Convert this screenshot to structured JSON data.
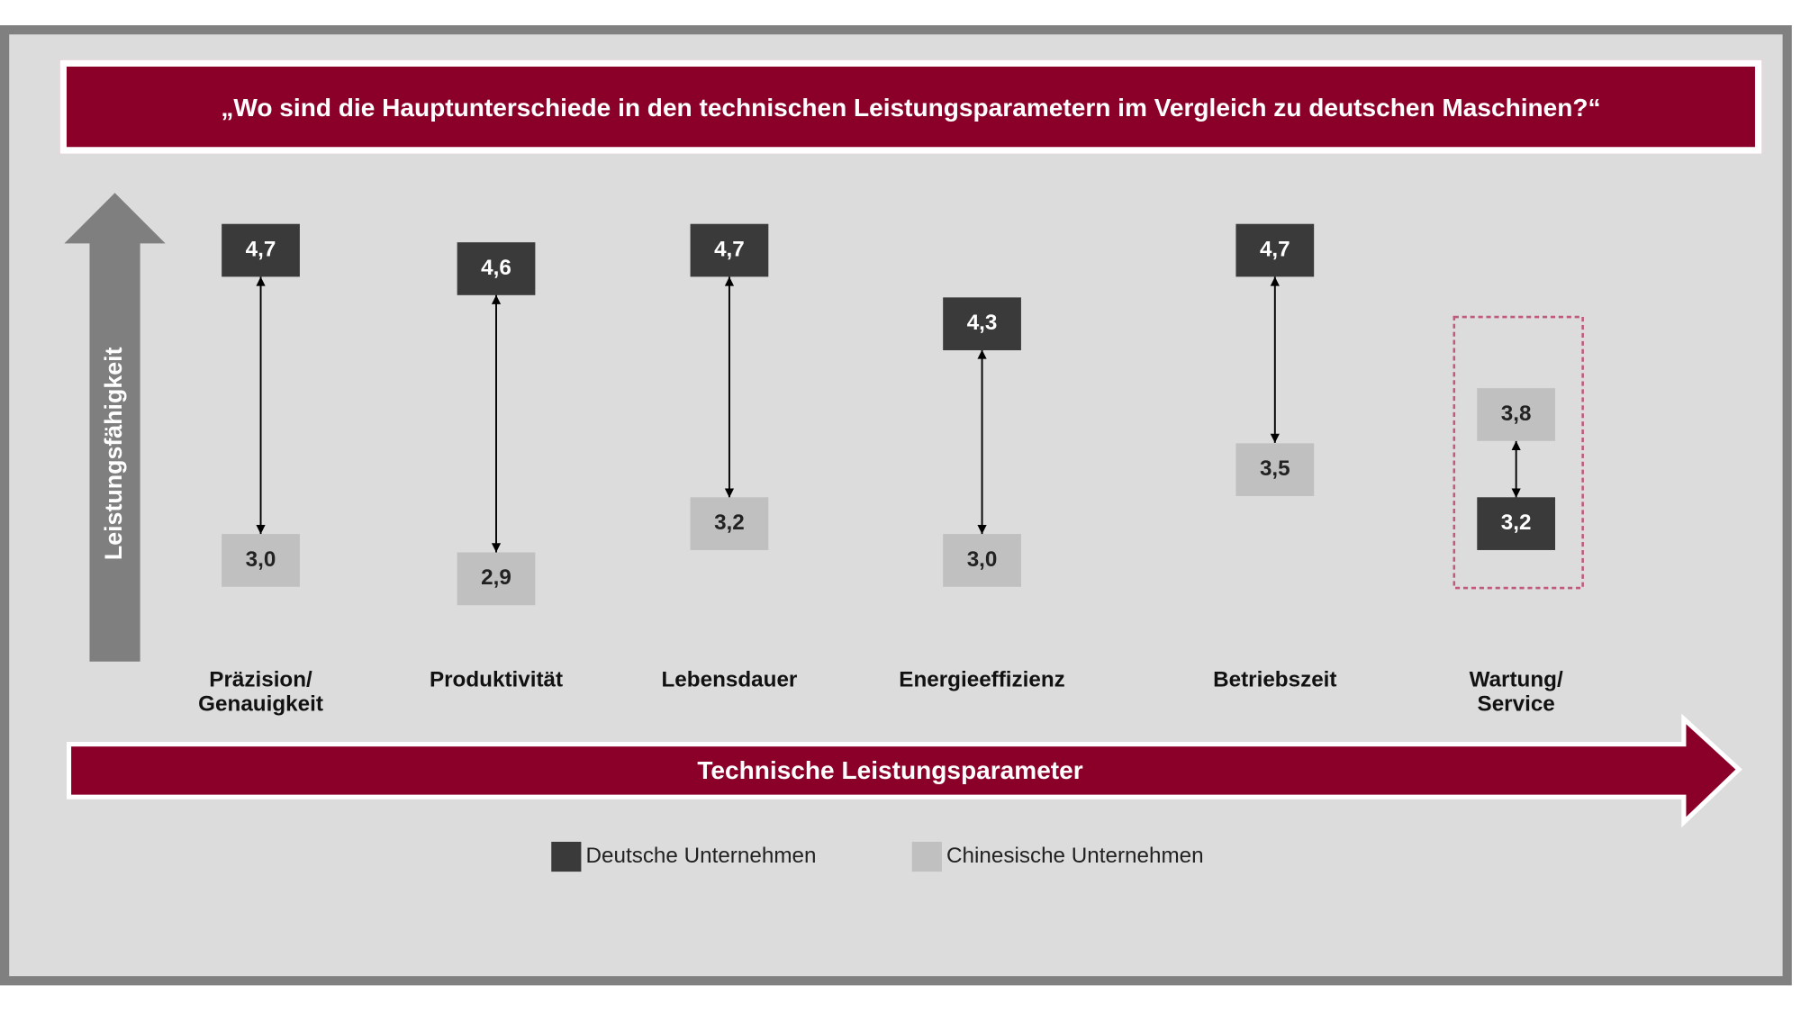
{
  "chart_data": {
    "type": "dumbbell",
    "title": "„Wo sind die Hauptunterschiede in den technischen Leistungsparametern im Vergleich zu deutschen Maschinen?“",
    "y_label": "Leistungsfähigkeit",
    "x_label": "Technische Leistungsparameter",
    "categories": [
      "Präzision/\nGenauigkeit",
      "Produktivität",
      "Lebensdauer",
      "Energieeffizienz",
      "Betriebszeit",
      "Wartung/\nService"
    ],
    "series": [
      {
        "name": "Deutsche Unternehmen",
        "color": "#3a3a3a",
        "values": [
          4.7,
          4.6,
          4.7,
          4.3,
          4.7,
          3.2
        ],
        "value_labels": [
          "4,7",
          "4,6",
          "4,7",
          "4,3",
          "4,7",
          "3,2"
        ]
      },
      {
        "name": "Chinesische Unternehmen",
        "color": "#c0c0c0",
        "values": [
          3.0,
          2.9,
          3.2,
          3.0,
          3.5,
          3.8
        ],
        "value_labels": [
          "3,0",
          "2,9",
          "3,2",
          "3,0",
          "3,5",
          "3,8"
        ]
      }
    ]
  }
}
